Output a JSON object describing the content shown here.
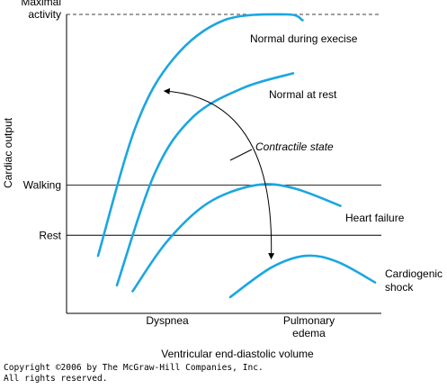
{
  "chart_data": {
    "type": "line",
    "xlabel": "Ventricular end-diastolic volume",
    "ylabel": "Cardiac output",
    "xlim": [
      0,
      100
    ],
    "ylim": [
      0,
      100
    ],
    "grid": false,
    "legend": "none",
    "line_color": "#1ba6e0",
    "y_reference_lines": [
      {
        "label": "Maximal activity",
        "label_lines": [
          "Maximal",
          "activity"
        ],
        "y": 100,
        "style": "dashed"
      },
      {
        "label": "Walking",
        "y": 42,
        "style": "solid"
      },
      {
        "label": "Rest",
        "y": 25,
        "style": "solid"
      }
    ],
    "x_ticks": [
      {
        "label": "Dyspnea",
        "label_lines": [
          "Dyspnea"
        ],
        "x": 32
      },
      {
        "label": "Pulmonary edema",
        "label_lines": [
          "Pulmonary",
          "edema"
        ],
        "x": 77
      }
    ],
    "series": [
      {
        "name": "Normal during execise",
        "label_lines": [
          "Normal during execise"
        ],
        "points": [
          [
            10,
            18
          ],
          [
            22,
            62
          ],
          [
            34,
            85
          ],
          [
            50,
            98
          ],
          [
            70,
            100
          ],
          [
            75,
            98
          ]
        ]
      },
      {
        "name": "Normal at rest",
        "label_lines": [
          "Normal at rest"
        ],
        "points": [
          [
            16,
            8
          ],
          [
            28,
            46
          ],
          [
            40,
            65
          ],
          [
            56,
            75
          ],
          [
            72,
            80
          ]
        ]
      },
      {
        "name": "Heart failure",
        "label_lines": [
          "Heart failure"
        ],
        "points": [
          [
            21,
            6
          ],
          [
            32,
            23
          ],
          [
            45,
            36
          ],
          [
            60,
            42
          ],
          [
            72,
            41
          ],
          [
            87,
            35
          ]
        ]
      },
      {
        "name": "Cardiogenic shock",
        "label_lines": [
          "Cardiogenic",
          "shock"
        ],
        "points": [
          [
            52,
            4
          ],
          [
            65,
            14
          ],
          [
            76,
            18
          ],
          [
            86,
            16
          ],
          [
            98,
            9
          ]
        ]
      }
    ],
    "annotation": {
      "text": "Contractile state",
      "arrow_from": [
        31,
        74
      ],
      "arrow_to": [
        65,
        17
      ]
    }
  },
  "copyright": {
    "line1": "Copyright ©2006 by The McGraw-Hill Companies, Inc.",
    "line2": "All rights reserved."
  }
}
